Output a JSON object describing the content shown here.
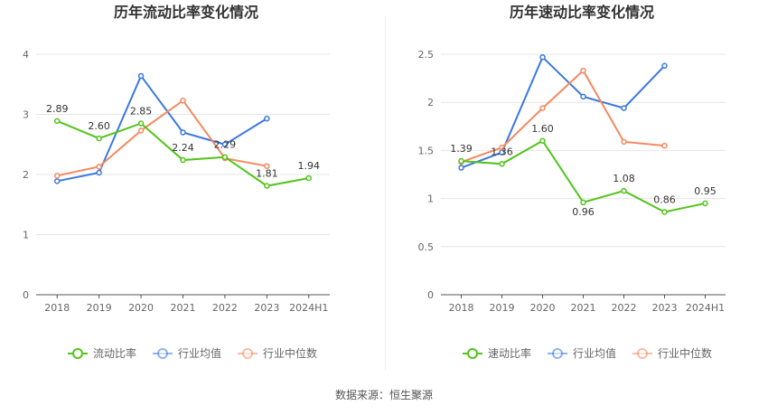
{
  "footer": {
    "source": "数据来源：恒生聚源"
  },
  "colors": {
    "main": "#52c41a",
    "avg": "#3a78e0",
    "median": "#f4895f"
  },
  "chart_data": [
    {
      "type": "line",
      "title": "历年流动比率变化情况",
      "categories": [
        "2018",
        "2019",
        "2020",
        "2021",
        "2022",
        "2023",
        "2024H1"
      ],
      "ylim": [
        0,
        4
      ],
      "yticks": [
        "0",
        "1",
        "2",
        "3",
        "4"
      ],
      "legend_position": "bottom",
      "grid": true,
      "series": [
        {
          "name": "流动比率",
          "color": "#52c41a",
          "values": [
            2.89,
            2.6,
            2.85,
            2.24,
            2.29,
            1.81,
            1.94
          ],
          "labels": [
            "2.89",
            "2.60",
            "2.85",
            "2.24",
            "2.29",
            "1.81",
            "1.94"
          ]
        },
        {
          "name": "行业均值",
          "color": "#3a78e0",
          "values": [
            1.89,
            2.03,
            3.64,
            2.7,
            2.5,
            2.93,
            null
          ]
        },
        {
          "name": "行业中位数",
          "color": "#f4895f",
          "values": [
            1.98,
            2.13,
            2.73,
            3.23,
            2.27,
            2.14,
            null
          ]
        }
      ]
    },
    {
      "type": "line",
      "title": "历年速动比率变化情况",
      "categories": [
        "2018",
        "2019",
        "2020",
        "2021",
        "2022",
        "2023",
        "2024H1"
      ],
      "ylim": [
        0,
        2.5
      ],
      "yticks": [
        "0",
        "0.5",
        "1",
        "1.5",
        "2",
        "2.5"
      ],
      "legend_position": "bottom",
      "grid": true,
      "series": [
        {
          "name": "速动比率",
          "color": "#52c41a",
          "values": [
            1.39,
            1.36,
            1.6,
            0.96,
            1.08,
            0.86,
            0.95
          ],
          "labels": [
            "1.39",
            "1.36",
            "1.60",
            "0.96",
            "1.08",
            "0.86",
            "0.95"
          ]
        },
        {
          "name": "行业均值",
          "color": "#3a78e0",
          "values": [
            1.32,
            1.48,
            2.47,
            2.06,
            1.94,
            2.38,
            null
          ]
        },
        {
          "name": "行业中位数",
          "color": "#f4895f",
          "values": [
            1.38,
            1.53,
            1.94,
            2.33,
            1.59,
            1.55,
            null
          ]
        }
      ]
    }
  ]
}
